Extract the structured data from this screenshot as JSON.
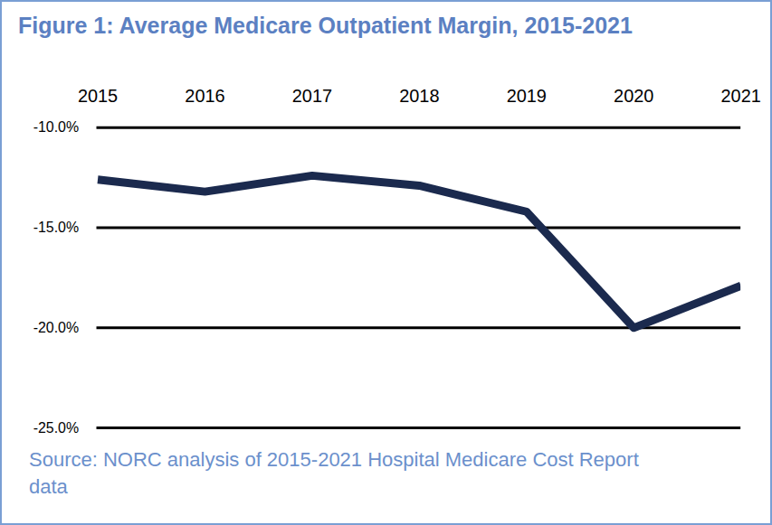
{
  "chart_data": {
    "type": "line",
    "title": "Figure 1: Average Medicare Outpatient Margin, 2015-2021",
    "source": "Source: NORC analysis of 2015-2021 Hospital Medicare Cost Report data",
    "categories": [
      "2015",
      "2016",
      "2017",
      "2018",
      "2019",
      "2020",
      "2021"
    ],
    "values": [
      -12.6,
      -13.2,
      -12.4,
      -12.9,
      -14.2,
      -20.0,
      -17.9
    ],
    "color": "#1b2a4e",
    "ylim": [
      -25,
      -10
    ],
    "yticks": [
      {
        "value": -10,
        "label": "-10.0%"
      },
      {
        "value": -15,
        "label": "-15.0%"
      },
      {
        "value": -20,
        "label": "-20.0%"
      },
      {
        "value": -25,
        "label": "-25.0%"
      }
    ],
    "grid": true
  }
}
